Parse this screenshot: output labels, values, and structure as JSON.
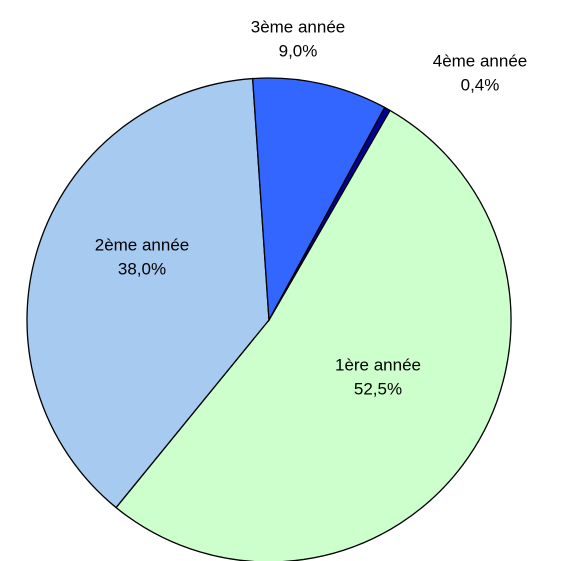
{
  "chart_data": {
    "type": "pie",
    "categories": [
      "1ère année",
      "2ème année",
      "3ème année",
      "4ème année"
    ],
    "values": [
      52.5,
      38.0,
      9.0,
      0.4
    ],
    "value_labels": [
      "52,5%",
      "38,0%",
      "9,0%",
      "0,4%"
    ],
    "colors": [
      "#ccffcc",
      "#a6caf0",
      "#3366ff",
      "#000099"
    ]
  }
}
